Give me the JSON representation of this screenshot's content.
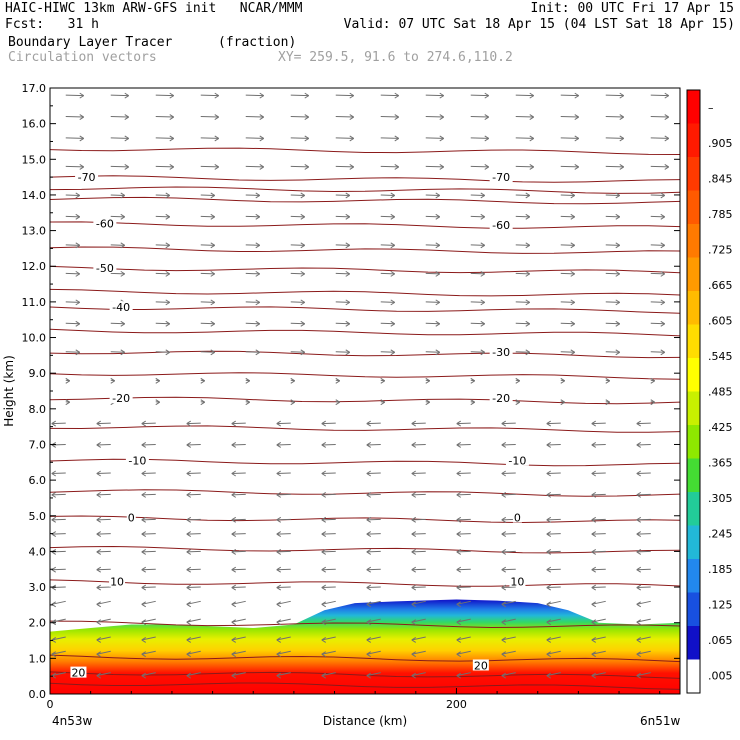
{
  "header": {
    "model": "HAIC-HIWC 13km ARW-GFS init   NCAR/MMM",
    "init": "Init: 00 UTC Fri 17 Apr 15",
    "fcst": "Fcst:   31 h",
    "valid": "Valid: 07 UTC Sat 18 Apr 15 (04 LST Sat 18 Apr 15)",
    "field1": "Boundary Layer Tracer",
    "field1_units": "(fraction)",
    "field2": "Circulation vectors",
    "xy": "XY= 259.5, 91.6 to 274.6,110.2"
  },
  "chart_data": {
    "type": "heatmap",
    "xlabel": "Distance (km)",
    "ylabel": "Height (km)",
    "xlim": [
      0,
      310
    ],
    "ylim": [
      0,
      17
    ],
    "x_ticks": [
      "0",
      "200"
    ],
    "y_ticks": [
      "0.0",
      "1.0",
      "2.0",
      "3.0",
      "4.0",
      "5.0",
      "6.0",
      "7.0",
      "8.0",
      "9.0",
      "10.0",
      "11.0",
      "12.0",
      "13.0",
      "14.0",
      "15.0",
      "16.0",
      "17.0"
    ],
    "x_end_labels": {
      "left": "4n53w",
      "right": "6n51w"
    },
    "colorbar": {
      "labels": [
        "–",
        ".905",
        ".845",
        ".785",
        ".725",
        ".665",
        ".605",
        ".545",
        ".485",
        ".425",
        ".365",
        ".305",
        ".245",
        ".185",
        ".125",
        ".065",
        ".005"
      ],
      "colors": [
        "#ff0000",
        "#ff1a00",
        "#ff3a00",
        "#ff5a00",
        "#ff7a00",
        "#ff9a00",
        "#ffbb00",
        "#ffdd00",
        "#ffff00",
        "#c8f000",
        "#8ee800",
        "#44dd33",
        "#22cc99",
        "#22b8d8",
        "#2288ee",
        "#1850e0",
        "#1010c8",
        "#ffffff"
      ]
    },
    "tracer_top_profile": [
      [
        0,
        1.75
      ],
      [
        20,
        1.85
      ],
      [
        40,
        1.95
      ],
      [
        60,
        1.95
      ],
      [
        80,
        1.9
      ],
      [
        100,
        1.85
      ],
      [
        120,
        1.95
      ],
      [
        135,
        2.35
      ],
      [
        150,
        2.55
      ],
      [
        170,
        2.6
      ],
      [
        200,
        2.65
      ],
      [
        220,
        2.62
      ],
      [
        240,
        2.55
      ],
      [
        255,
        2.35
      ],
      [
        270,
        2.0
      ],
      [
        290,
        1.95
      ],
      [
        310,
        2.0
      ]
    ],
    "temperature_contours": [
      {
        "label": "-70",
        "y": 14.5
      },
      {
        "label": "-60",
        "y": 13.2
      },
      {
        "label": "-50",
        "y": 11.95
      },
      {
        "label": "-40",
        "y": 10.85
      },
      {
        "label": "-30",
        "y": 9.6
      },
      {
        "label": "-20",
        "y": 8.3
      },
      {
        "label": "-10",
        "y": 6.55
      },
      {
        "label": "0",
        "y": 4.95
      },
      {
        "label": "10",
        "y": 3.15
      },
      {
        "label": "20",
        "y": 0.6
      }
    ],
    "unlabeled_contours": [
      15.3,
      14.2,
      13.9,
      12.5,
      11.3,
      10.2,
      9.0,
      7.5,
      5.7,
      4.1,
      2.0,
      1.05,
      0.3
    ],
    "contour_labels": [
      {
        "text": "-70",
        "x": 18,
        "y": 14.5
      },
      {
        "text": "-70",
        "x": 222,
        "y": 14.5
      },
      {
        "text": "-60",
        "x": 27,
        "y": 13.2
      },
      {
        "text": "-60",
        "x": 222,
        "y": 13.15
      },
      {
        "text": "-50",
        "x": 27,
        "y": 11.95
      },
      {
        "text": "-40",
        "x": 35,
        "y": 10.85
      },
      {
        "text": "-30",
        "x": 222,
        "y": 9.6
      },
      {
        "text": "-20",
        "x": 35,
        "y": 8.3
      },
      {
        "text": "-20",
        "x": 222,
        "y": 8.3
      },
      {
        "text": "-10",
        "x": 43,
        "y": 6.55
      },
      {
        "text": "-10",
        "x": 230,
        "y": 6.55
      },
      {
        "text": "0",
        "x": 40,
        "y": 4.95
      },
      {
        "text": "0",
        "x": 230,
        "y": 4.95
      },
      {
        "text": "10",
        "x": 33,
        "y": 3.15
      },
      {
        "text": "10",
        "x": 230,
        "y": 3.15
      },
      {
        "text": "20",
        "x": 14,
        "y": 0.6
      },
      {
        "text": "20",
        "x": 212,
        "y": 0.8
      }
    ],
    "wind": {
      "columns": 14,
      "levels": [
        0.6,
        1.2,
        1.6,
        2.1,
        2.6,
        3.0,
        3.5,
        4.0,
        4.5,
        4.9,
        5.6,
        6.2,
        7.0,
        7.6,
        8.2,
        8.8,
        9.6,
        10.4,
        11.0,
        11.8,
        12.6,
        13.4,
        14.0,
        14.8,
        15.6,
        16.2,
        16.8
      ],
      "direction_by_level": [
        -1,
        -1,
        -1,
        -1,
        -1,
        -1,
        -1,
        -1,
        -1,
        -1,
        -1,
        -1,
        -1,
        -1,
        0,
        0,
        1,
        1,
        1,
        1,
        1,
        1,
        1,
        1,
        1,
        1,
        1
      ]
    }
  }
}
